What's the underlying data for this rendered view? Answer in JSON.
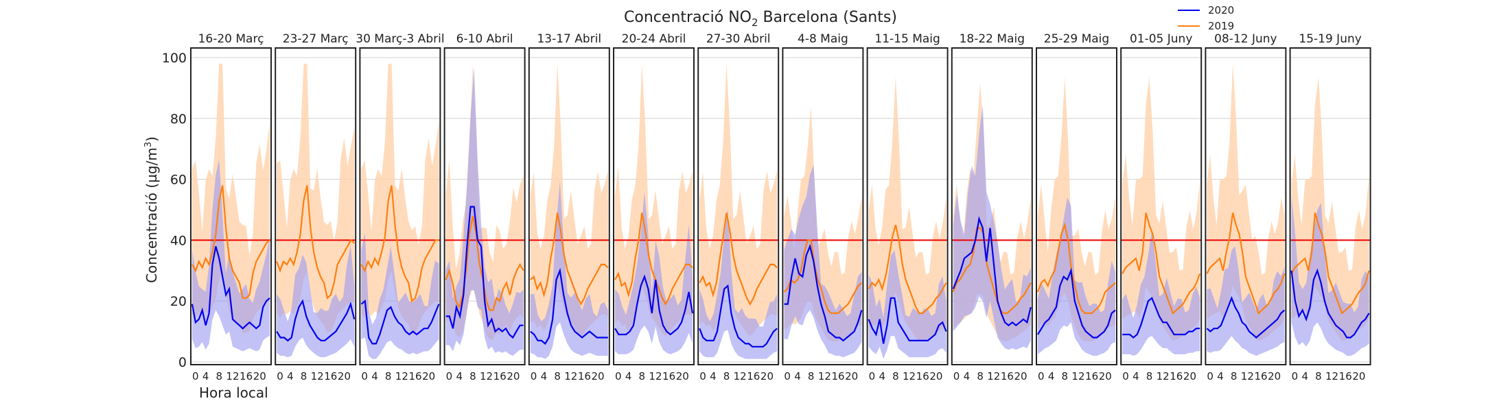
{
  "chart_data": {
    "type": "line",
    "title_pre": "Concentració NO",
    "title_sub": "2",
    "title_post": " Barcelona (Sants)",
    "ylabel_pre": "Concentració (µg/m",
    "ylabel_sup": "3",
    "ylabel_post": ")",
    "xlabel": "Hora local",
    "ylim": [
      0,
      100
    ],
    "yticks": [
      "0",
      "20",
      "40",
      "60",
      "80",
      "100"
    ],
    "xticks": [
      "0",
      "4",
      "8",
      "12",
      "16",
      "20"
    ],
    "xlim": [
      0,
      23
    ],
    "limit_line": 40,
    "grid": true,
    "legend_position": "top-right",
    "colors": {
      "s2020": "#0000ee",
      "s2019": "#ff7f0e",
      "band2020": "#9a9af2",
      "band2019": "#ffd5b0",
      "limit": "#ee0000",
      "grid": "#d0d0d0",
      "frame": "#222222"
    },
    "legend": [
      {
        "label": "2020",
        "color": "#0000ee"
      },
      {
        "label": "2019",
        "color": "#ff7f0e"
      }
    ],
    "panels": [
      {
        "title": "16-20 Març",
        "s2020": [
          19,
          13,
          14,
          17,
          12,
          16,
          32,
          38,
          34,
          28,
          22,
          24,
          14,
          13,
          12,
          11,
          12,
          13,
          12,
          11,
          12,
          18,
          20,
          21
        ],
        "s2019": [
          32,
          30,
          33,
          31,
          34,
          32,
          36,
          42,
          53,
          58,
          44,
          34,
          30,
          28,
          26,
          21,
          21,
          22,
          29,
          33,
          35,
          37,
          39,
          40
        ]
      },
      {
        "title": "23-27 Març",
        "s2020": [
          10,
          8,
          8,
          7,
          8,
          14,
          18,
          20,
          15,
          12,
          10,
          8,
          7,
          7,
          8,
          9,
          10,
          12,
          14,
          16,
          19,
          14
        ],
        "s2019": [
          33,
          30,
          33,
          32,
          34,
          32,
          36,
          42,
          53,
          58,
          44,
          36,
          31,
          28,
          26,
          21,
          22,
          26,
          32,
          34,
          36,
          38,
          40,
          39
        ]
      },
      {
        "title": "30 Març-3 Abril",
        "s2020": [
          19,
          20,
          8,
          6,
          6,
          9,
          13,
          17,
          18,
          15,
          13,
          12,
          10,
          9,
          10,
          9,
          10,
          11,
          11,
          13,
          16,
          19
        ],
        "s2019": [
          32,
          30,
          33,
          31,
          34,
          32,
          36,
          41,
          53,
          58,
          45,
          36,
          31,
          28,
          26,
          20,
          21,
          25,
          31,
          34,
          36,
          38,
          40,
          40
        ]
      },
      {
        "title": "6-10 Abril",
        "s2020": [
          15,
          15,
          11,
          18,
          15,
          22,
          38,
          51,
          51,
          40,
          38,
          20,
          12,
          14,
          10,
          11,
          10,
          11,
          9,
          8,
          10,
          12,
          12
        ],
        "s2019": [
          27,
          30,
          26,
          20,
          18,
          22,
          30,
          42,
          48,
          42,
          32,
          27,
          20,
          17,
          17,
          21,
          20,
          24,
          26,
          22,
          27,
          30,
          32,
          30
        ]
      },
      {
        "title": "13-17 Abril",
        "s2020": [
          10,
          9,
          7,
          7,
          6,
          8,
          14,
          27,
          30,
          22,
          16,
          12,
          10,
          9,
          8,
          9,
          10,
          9,
          8,
          8,
          8,
          8
        ],
        "s2019": [
          27,
          28,
          24,
          26,
          22,
          26,
          34,
          40,
          49,
          43,
          35,
          30,
          27,
          24,
          21,
          19,
          21,
          24,
          26,
          28,
          30,
          32,
          32,
          31
        ]
      },
      {
        "title": "20-24 Abril",
        "s2020": [
          11,
          9,
          9,
          9,
          10,
          12,
          19,
          25,
          28,
          24,
          16,
          27,
          17,
          12,
          10,
          9,
          10,
          11,
          13,
          17,
          23,
          16
        ],
        "s2019": [
          27,
          29,
          25,
          26,
          22,
          26,
          34,
          40,
          49,
          43,
          35,
          30,
          27,
          24,
          21,
          19,
          21,
          24,
          26,
          28,
          30,
          32,
          32,
          31
        ]
      },
      {
        "title": "27-30 Abril",
        "s2020": [
          11,
          8,
          7,
          7,
          7,
          10,
          17,
          24,
          25,
          16,
          11,
          8,
          7,
          6,
          6,
          5,
          5,
          5,
          5,
          6,
          8,
          10,
          11
        ],
        "s2019": [
          26,
          28,
          25,
          26,
          22,
          26,
          34,
          41,
          49,
          43,
          35,
          30,
          27,
          24,
          21,
          19,
          21,
          24,
          26,
          28,
          30,
          32,
          32,
          31
        ]
      },
      {
        "title": "4-8 Maig",
        "s2020": [
          19,
          19,
          28,
          34,
          29,
          28,
          35,
          38,
          33,
          25,
          19,
          15,
          10,
          9,
          8,
          8,
          7,
          8,
          9,
          10,
          13,
          17
        ],
        "s2019": [
          23,
          24,
          27,
          26,
          27,
          30,
          36,
          40,
          40,
          32,
          27,
          24,
          20,
          17,
          16,
          16,
          16,
          17,
          18,
          19,
          21,
          23,
          25,
          26
        ]
      },
      {
        "title": "11-15 Maig",
        "s2020": [
          14,
          11,
          9,
          14,
          6,
          12,
          21,
          21,
          13,
          11,
          9,
          7,
          7,
          7,
          7,
          7,
          7,
          8,
          9,
          12,
          13,
          10
        ],
        "s2019": [
          24,
          26,
          25,
          27,
          24,
          28,
          34,
          41,
          45,
          40,
          32,
          27,
          24,
          21,
          18,
          16,
          16,
          17,
          18,
          19,
          21,
          22,
          24,
          26
        ]
      },
      {
        "title": "18-22 Maig",
        "s2020": [
          24,
          27,
          30,
          34,
          35,
          36,
          40,
          47,
          44,
          33,
          44,
          32,
          20,
          16,
          13,
          12,
          13,
          12,
          13,
          14,
          13,
          18
        ],
        "s2019": [
          23,
          26,
          27,
          29,
          31,
          32,
          36,
          44,
          44,
          42,
          32,
          28,
          24,
          20,
          17,
          16,
          16,
          17,
          18,
          19,
          21,
          22,
          24,
          26
        ]
      },
      {
        "title": "25-29 Maig",
        "s2020": [
          9,
          11,
          13,
          14,
          16,
          18,
          25,
          28,
          27,
          30,
          20,
          16,
          12,
          10,
          9,
          8,
          8,
          9,
          10,
          12,
          16,
          17
        ],
        "s2019": [
          23,
          26,
          27,
          25,
          28,
          30,
          36,
          42,
          45,
          40,
          30,
          25,
          20,
          17,
          16,
          16,
          16,
          17,
          18,
          20,
          23,
          24,
          25,
          26
        ]
      },
      {
        "title": "01-05 Juny",
        "s2020": [
          9,
          9,
          9,
          8,
          9,
          12,
          16,
          20,
          21,
          18,
          15,
          13,
          13,
          11,
          9,
          9,
          9,
          9,
          10,
          10,
          11,
          11
        ],
        "s2019": [
          29,
          31,
          32,
          33,
          34,
          30,
          36,
          49,
          45,
          42,
          36,
          28,
          25,
          22,
          19,
          16,
          17,
          18,
          19,
          21,
          23,
          24,
          26,
          29
        ]
      },
      {
        "title": "08-12 Juny",
        "s2020": [
          11,
          10,
          11,
          11,
          12,
          15,
          18,
          21,
          18,
          16,
          13,
          12,
          10,
          9,
          8,
          9,
          10,
          11,
          12,
          13,
          14,
          16,
          17
        ],
        "s2019": [
          29,
          31,
          32,
          33,
          34,
          30,
          36,
          41,
          49,
          45,
          42,
          36,
          28,
          25,
          22,
          19,
          16,
          17,
          18,
          19,
          21,
          23,
          24,
          26,
          29
        ]
      },
      {
        "title": "15-19 Juny",
        "s2020": [
          30,
          20,
          15,
          17,
          14,
          18,
          27,
          30,
          26,
          20,
          16,
          14,
          12,
          11,
          10,
          8,
          8,
          9,
          11,
          13,
          14,
          16
        ],
        "s2019": [
          29,
          31,
          32,
          33,
          34,
          30,
          36,
          49,
          45,
          42,
          36,
          28,
          25,
          22,
          19,
          16,
          17,
          18,
          19,
          21,
          23,
          24,
          26,
          30
        ]
      }
    ]
  }
}
